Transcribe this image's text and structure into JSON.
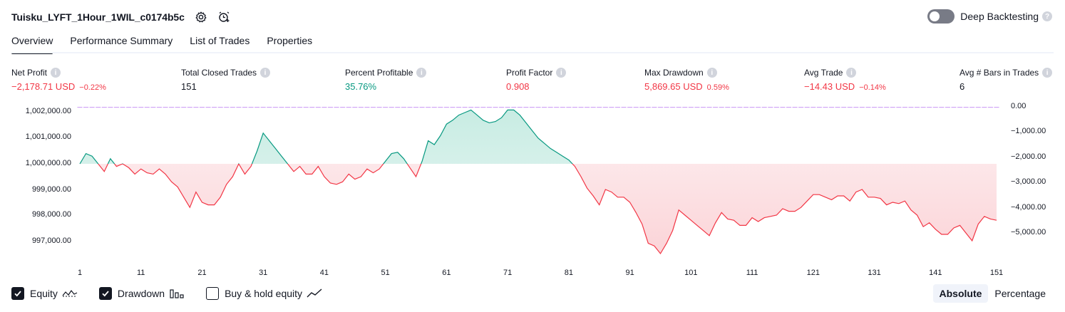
{
  "header": {
    "title": "Tuisku_LYFT_1Hour_1WIL_c0174b5c",
    "settings_icon": "gear-icon",
    "alert_icon": "alert-add-icon"
  },
  "deep_backtesting": {
    "label": "Deep Backtesting",
    "enabled": false
  },
  "tabs": [
    {
      "label": "Overview",
      "active": true
    },
    {
      "label": "Performance Summary",
      "active": false
    },
    {
      "label": "List of Trades",
      "active": false
    },
    {
      "label": "Properties",
      "active": false
    }
  ],
  "metrics": [
    {
      "label": "Net Profit",
      "value": "−2,178.71 USD",
      "pct": "−0.22%",
      "tone": "neg"
    },
    {
      "label": "Total Closed Trades",
      "value": "151",
      "pct": "",
      "tone": "normal"
    },
    {
      "label": "Percent Profitable",
      "value": "35.76%",
      "pct": "",
      "tone": "pos"
    },
    {
      "label": "Profit Factor",
      "value": "0.908",
      "pct": "",
      "tone": "neg"
    },
    {
      "label": "Max Drawdown",
      "value": "5,869.65 USD",
      "pct": "0.59%",
      "tone": "neg"
    },
    {
      "label": "Avg Trade",
      "value": "−14.43 USD",
      "pct": "−0.14%",
      "tone": "neg"
    },
    {
      "label": "Avg # Bars in Trades",
      "value": "6",
      "pct": "",
      "tone": "normal"
    }
  ],
  "chart_data": {
    "type": "line",
    "baseline": 1000000,
    "left_axis_ticks": [
      "1,002,000.00",
      "1,001,000.00",
      "1,000,000.00",
      "999,000.00",
      "998,000.00",
      "997,000.00"
    ],
    "right_axis_ticks": [
      "0.00",
      "−1,000.00",
      "−2,000.00",
      "−3,000.00",
      "−4,000.00",
      "−5,000.00"
    ],
    "x_ticks": [
      "1",
      "11",
      "21",
      "31",
      "41",
      "51",
      "61",
      "71",
      "81",
      "91",
      "101",
      "111",
      "121",
      "131",
      "141",
      "151"
    ],
    "left_ylim": [
      996500,
      1002200
    ],
    "right_ylim": [
      -5650,
      0
    ],
    "equity": [
      1000000,
      1000400,
      1000300,
      1000000,
      999700,
      1000200,
      999900,
      1000000,
      999850,
      999600,
      999800,
      999650,
      999600,
      999800,
      999600,
      999300,
      999100,
      998700,
      998300,
      998900,
      998500,
      998400,
      998400,
      998700,
      999200,
      999500,
      1000000,
      999600,
      999900,
      1000500,
      1001200,
      1000900,
      1000600,
      1000300,
      1000000,
      999700,
      999900,
      999600,
      999600,
      999900,
      999500,
      999250,
      999200,
      999300,
      999600,
      999400,
      999500,
      999800,
      999650,
      999800,
      1000100,
      1000400,
      1000450,
      1000200,
      999850,
      999500,
      1000100,
      1000900,
      1000750,
      1001100,
      1001550,
      1001700,
      1001900,
      1002000,
      1002100,
      1001900,
      1001700,
      1001600,
      1001650,
      1001800,
      1002100,
      1002100,
      1001900,
      1001600,
      1001300,
      1001000,
      1000800,
      1000600,
      1000450,
      1000300,
      1000150,
      999900,
      999500,
      999050,
      998750,
      998400,
      999000,
      998900,
      998700,
      998700,
      998500,
      998100,
      997650,
      996900,
      996800,
      996500,
      996900,
      997400,
      998200,
      998000,
      997800,
      997600,
      997400,
      997200,
      997700,
      998100,
      997850,
      997800,
      997600,
      997600,
      997900,
      997750,
      997900,
      997950,
      998000,
      998250,
      998150,
      998150,
      998300,
      998550,
      998800,
      998800,
      998700,
      998600,
      998750,
      998750,
      998550,
      998900,
      999000,
      998700,
      998700,
      998650,
      998400,
      998500,
      998450,
      998550,
      998200,
      998000,
      997550,
      997700,
      997450,
      997250,
      997250,
      997500,
      997600,
      997300,
      997000,
      997650,
      997950,
      997850,
      997800
    ],
    "drawdown": [
      0,
      -30,
      -150,
      -380,
      -650,
      -700,
      -400,
      -550,
      -750,
      -600,
      -900,
      -800,
      -1000,
      -1100,
      -900,
      -1300,
      -1500,
      -1700,
      -3100,
      -3500,
      -3000,
      -2500,
      -2700,
      -2200,
      -1600,
      -1100,
      -700,
      -1300,
      -800,
      -250,
      0,
      -300,
      -550,
      -850,
      -1150,
      -1600,
      -1350,
      -1700,
      -1700,
      -1350,
      -1850,
      -2100,
      -2150,
      -2050,
      -1750,
      -1950,
      -1850,
      -1550,
      -1700,
      -1550,
      -1250,
      -950,
      -900,
      -1150,
      -1500,
      -1850,
      -1250,
      -450,
      -600,
      -250,
      -100,
      0,
      0,
      0,
      0,
      -200,
      -400,
      -500,
      -450,
      -300,
      0,
      0,
      -200,
      -500,
      -800,
      -1100,
      -1300,
      -1500,
      -1650,
      -1800,
      -1950,
      -2200,
      -2600,
      -3050,
      -3350,
      -3700,
      -3100,
      -3200,
      -3400,
      -3400,
      -3600,
      -4000,
      -4450,
      -5200,
      -5300,
      -5600,
      -5200,
      -4700,
      -3900,
      -4100,
      -4300,
      -4500,
      -4700,
      -4900,
      -4400,
      -4000,
      -4250,
      -4300,
      -4500,
      -4500,
      -4200,
      -4350,
      -4200,
      -4150,
      -4100,
      -3850,
      -3950,
      -3950,
      -3800,
      -3550,
      -3300,
      -3300,
      -3400,
      -3500,
      -3350,
      -3350,
      -3550,
      -3200,
      -3100,
      -3400,
      -3400,
      -3450,
      -3700,
      -3600,
      -3650,
      -3550,
      -3900,
      -4100,
      -4550,
      -4400,
      -4650,
      -4850,
      -4850,
      -4600,
      -4500,
      -4800,
      -5100,
      -4450,
      -4150,
      -4250,
      -4300
    ]
  },
  "legend": [
    {
      "label": "Equity",
      "checked": true,
      "icon": "equity-line-icon"
    },
    {
      "label": "Drawdown",
      "checked": true,
      "icon": "drawdown-bars-icon"
    },
    {
      "label": "Buy & hold equity",
      "checked": false,
      "icon": "buy-hold-line-icon"
    }
  ],
  "view_mode": {
    "options": [
      "Absolute",
      "Percentage"
    ],
    "selected": "Absolute"
  },
  "colors": {
    "equity_pos": "#089981",
    "equity_neg": "#f23645",
    "drawdown_bar": "#d1a6f6",
    "fill_pos": "#c8ece3",
    "fill_neg": "#fbd4d8"
  }
}
